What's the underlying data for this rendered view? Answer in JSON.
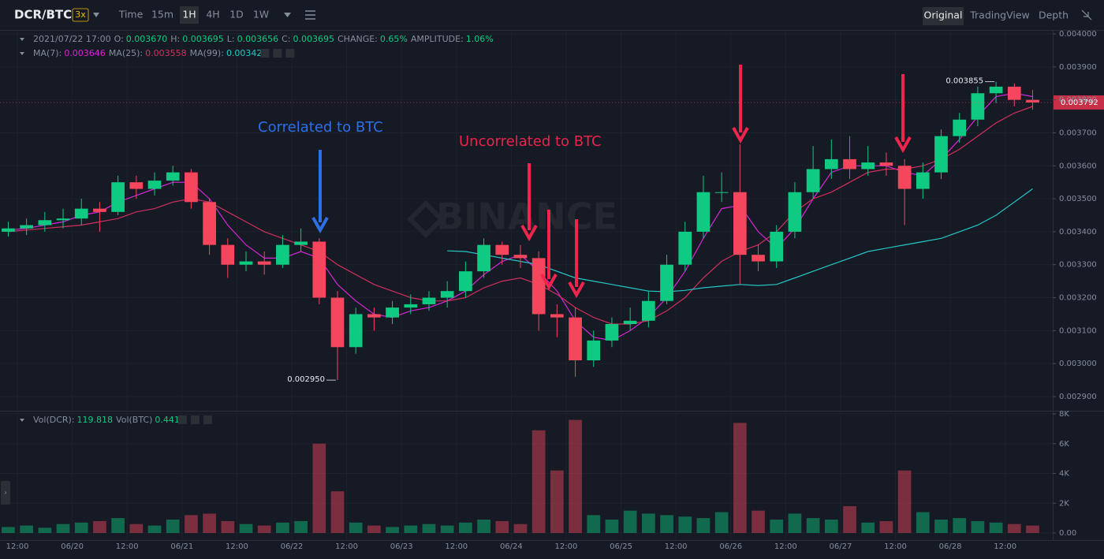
{
  "toolbar": {
    "pair": "DCR/BTC",
    "leverage": "3x",
    "intervals": [
      "Time",
      "15m",
      "1H",
      "4H",
      "1D",
      "1W"
    ],
    "views": [
      "Original",
      "TradingView",
      "Depth"
    ]
  },
  "info": {
    "datetime": "2021/07/22 17:00",
    "items": [
      {
        "label": "O:",
        "value": "0.003670"
      },
      {
        "label": "H:",
        "value": "0.003695"
      },
      {
        "label": "L:",
        "value": "0.003656"
      },
      {
        "label": "C:",
        "value": "0.003695"
      },
      {
        "label": "CHANGE:",
        "value": "0.65%"
      },
      {
        "label": "AMPLITUDE:",
        "value": "1.06%"
      }
    ]
  },
  "ma_legend": [
    {
      "label": "MA(7):",
      "value": "0.003646"
    },
    {
      "label": "MA(25):",
      "value": "0.003558"
    },
    {
      "label": "MA(99):",
      "value": "0.003423"
    }
  ],
  "vol_legend": [
    {
      "label": "Vol(DCR):",
      "value": "119.818"
    },
    {
      "label": "Vol(BTC)",
      "value": "0.441"
    }
  ],
  "watermark": "BINANCE",
  "chart_data": {
    "type": "candlestick",
    "annotations": [
      {
        "text": "Correlated to BTC",
        "color": "#2f6fe6"
      },
      {
        "text": "Uncorrelated to BTC",
        "color": "#e8244b"
      }
    ],
    "up_color": "#0ecb81",
    "down_color": "#f6465d",
    "x": [
      -2,
      2,
      6,
      10,
      14,
      18,
      22,
      26,
      30,
      34,
      38,
      42,
      46,
      50,
      54,
      58,
      62,
      66,
      70,
      74,
      78,
      82,
      86,
      90,
      94,
      98,
      102,
      106,
      110,
      114,
      118,
      122,
      126,
      130,
      134,
      138,
      142,
      146,
      150,
      154,
      158,
      162,
      166,
      170,
      174,
      178,
      182,
      186,
      190,
      194,
      198,
      202,
      206,
      210,
      214,
      218,
      222
    ],
    "open": [
      0.0034,
      0.00341,
      0.00342,
      0.003435,
      0.00344,
      0.00347,
      0.00346,
      0.00355,
      0.00353,
      0.003555,
      0.00358,
      0.00349,
      0.00336,
      0.0033,
      0.00331,
      0.0033,
      0.00336,
      0.00337,
      0.0032,
      0.00305,
      0.00315,
      0.00314,
      0.00317,
      0.00318,
      0.0032,
      0.00322,
      0.00328,
      0.00336,
      0.00333,
      0.00332,
      0.00315,
      0.00314,
      0.00301,
      0.00307,
      0.00312,
      0.00313,
      0.00319,
      0.0033,
      0.0034,
      0.00352,
      0.00352,
      0.00333,
      0.00331,
      0.0034,
      0.00352,
      0.00359,
      0.00362,
      0.00359,
      0.00361,
      0.0036,
      0.00353,
      0.00358,
      0.00369,
      0.00374,
      0.00382,
      0.00384,
      0.0038
    ],
    "high": [
      0.00343,
      0.00344,
      0.00346,
      0.00347,
      0.0035,
      0.00349,
      0.00357,
      0.00357,
      0.00358,
      0.0036,
      0.00359,
      0.0035,
      0.00338,
      0.00334,
      0.00334,
      0.00339,
      0.00341,
      0.00338,
      0.00322,
      0.00317,
      0.00317,
      0.00319,
      0.00321,
      0.00322,
      0.00325,
      0.00331,
      0.00338,
      0.00337,
      0.00336,
      0.00334,
      0.00318,
      0.00317,
      0.0031,
      0.00314,
      0.00317,
      0.00322,
      0.00333,
      0.00343,
      0.00357,
      0.00358,
      0.003665,
      0.00336,
      0.00342,
      0.00355,
      0.00366,
      0.00368,
      0.00369,
      0.00366,
      0.00364,
      0.00362,
      0.00361,
      0.00371,
      0.00376,
      0.00384,
      0.003855,
      0.00385,
      0.00383
    ],
    "low": [
      0.003385,
      0.00339,
      0.0034,
      0.00341,
      0.00342,
      0.0034,
      0.00345,
      0.0035,
      0.00351,
      0.00354,
      0.00347,
      0.00333,
      0.00326,
      0.00328,
      0.00327,
      0.00329,
      0.00334,
      0.00318,
      0.00295,
      0.00303,
      0.0031,
      0.00312,
      0.00315,
      0.00316,
      0.00317,
      0.0032,
      0.00326,
      0.0033,
      0.00329,
      0.0031,
      0.00308,
      0.00296,
      0.00299,
      0.00305,
      0.0031,
      0.00311,
      0.00318,
      0.00328,
      0.00338,
      0.00349,
      0.00324,
      0.00328,
      0.00329,
      0.00338,
      0.0035,
      0.00356,
      0.00356,
      0.00357,
      0.00357,
      0.00342,
      0.0035,
      0.00356,
      0.00367,
      0.00372,
      0.00379,
      0.00378,
      0.00377
    ],
    "close": [
      0.00341,
      0.00342,
      0.003435,
      0.00344,
      0.00347,
      0.00346,
      0.00355,
      0.00353,
      0.003555,
      0.00358,
      0.00349,
      0.00336,
      0.0033,
      0.00331,
      0.0033,
      0.00336,
      0.00337,
      0.0032,
      0.00305,
      0.00315,
      0.00314,
      0.00317,
      0.00318,
      0.0032,
      0.00322,
      0.00328,
      0.00336,
      0.00333,
      0.00332,
      0.00315,
      0.00314,
      0.00301,
      0.00307,
      0.00312,
      0.00313,
      0.00319,
      0.0033,
      0.0034,
      0.00352,
      0.00352,
      0.00333,
      0.00331,
      0.0034,
      0.00352,
      0.00359,
      0.00362,
      0.00359,
      0.00361,
      0.0036,
      0.00353,
      0.00358,
      0.00369,
      0.00374,
      0.00382,
      0.00384,
      0.0038,
      0.003792
    ],
    "volume": [
      400,
      500,
      350,
      600,
      700,
      800,
      1000,
      600,
      500,
      900,
      1200,
      1300,
      800,
      600,
      500,
      700,
      800,
      6000,
      2800,
      700,
      500,
      400,
      500,
      600,
      500,
      700,
      900,
      800,
      600,
      6900,
      4200,
      7600,
      1200,
      900,
      1500,
      1300,
      1200,
      1100,
      1000,
      1400,
      7400,
      1500,
      900,
      1300,
      1000,
      900,
      1800,
      700,
      800,
      4200,
      1400,
      900,
      1000,
      800,
      700,
      600,
      500
    ],
    "series": [
      {
        "color": "#d626d6",
        "values": [
          0.003405,
          0.00341,
          0.00342,
          0.00343,
          0.00345,
          0.00346,
          0.00349,
          0.00351,
          0.00353,
          0.00355,
          0.00355,
          0.0035,
          0.00342,
          0.00336,
          0.00332,
          0.00332,
          0.00334,
          0.00332,
          0.00324,
          0.00319,
          0.00315,
          0.00314,
          0.00316,
          0.00317,
          0.00319,
          0.00322,
          0.00327,
          0.00331,
          0.00333,
          0.00328,
          0.00322,
          0.00313,
          0.00308,
          0.00307,
          0.0031,
          0.00314,
          0.0032,
          0.00328,
          0.00338,
          0.00347,
          0.00348,
          0.0034,
          0.00335,
          0.00341,
          0.0035,
          0.00358,
          0.0036,
          0.0036,
          0.0036,
          0.00358,
          0.00357,
          0.00362,
          0.00368,
          0.00375,
          0.00381,
          0.00382,
          0.00381
        ]
      },
      {
        "color": "#d0305e",
        "values": [
          0.0034,
          0.003405,
          0.00341,
          0.003415,
          0.00342,
          0.00343,
          0.00344,
          0.00346,
          0.00347,
          0.00349,
          0.0035,
          0.00349,
          0.00346,
          0.00343,
          0.0034,
          0.00338,
          0.00336,
          0.00334,
          0.0033,
          0.00327,
          0.00324,
          0.00322,
          0.0032,
          0.00319,
          0.00319,
          0.0032,
          0.00323,
          0.00325,
          0.00326,
          0.00324,
          0.00321,
          0.00317,
          0.00314,
          0.00312,
          0.00312,
          0.00313,
          0.00316,
          0.0032,
          0.00326,
          0.00331,
          0.00334,
          0.00336,
          0.0034,
          0.00346,
          0.0035,
          0.00352,
          0.00355,
          0.00358,
          0.00359,
          0.00359,
          0.0036,
          0.00362,
          0.00365,
          0.00369,
          0.00373,
          0.00376,
          0.00378
        ]
      },
      {
        "color": "#26c6c6",
        "values": [
          null,
          null,
          null,
          null,
          null,
          null,
          null,
          null,
          null,
          null,
          null,
          null,
          null,
          null,
          null,
          null,
          null,
          null,
          null,
          null,
          null,
          null,
          null,
          null,
          0.003342,
          0.00334,
          0.00333,
          0.00332,
          0.00331,
          0.0033,
          0.00328,
          0.00326,
          0.00325,
          0.00324,
          0.00323,
          0.00322,
          0.003218,
          0.003222,
          0.00323,
          0.003235,
          0.00324,
          0.003237,
          0.00324,
          0.00326,
          0.00328,
          0.0033,
          0.00332,
          0.00334,
          0.00335,
          0.00336,
          0.00337,
          0.00338,
          0.0034,
          0.00342,
          0.00345,
          0.00349,
          0.00353
        ]
      }
    ],
    "price_markers": [
      {
        "value": 0.00295,
        "label": "0.002950"
      },
      {
        "value": 0.003855,
        "label": "0.003855"
      }
    ],
    "last_price": 0.003792,
    "xlim": [
      -3.8,
      226.4
    ],
    "xticks": [
      {
        "value": 0,
        "label": "12:00"
      },
      {
        "value": 12,
        "label": "06/20"
      },
      {
        "value": 24,
        "label": "12:00"
      },
      {
        "value": 36,
        "label": "06/21"
      },
      {
        "value": 48,
        "label": "12:00"
      },
      {
        "value": 60,
        "label": "06/22"
      },
      {
        "value": 72,
        "label": "12:00"
      },
      {
        "value": 84,
        "label": "06/23"
      },
      {
        "value": 96,
        "label": "12:00"
      },
      {
        "value": 108,
        "label": "06/24"
      },
      {
        "value": 120,
        "label": "12:00"
      },
      {
        "value": 132,
        "label": "06/25"
      },
      {
        "value": 144,
        "label": "12:00"
      },
      {
        "value": 156,
        "label": "06/26"
      },
      {
        "value": 168,
        "label": "12:00"
      },
      {
        "value": 180,
        "label": "06/27"
      },
      {
        "value": 192,
        "label": "12:00"
      },
      {
        "value": 204,
        "label": "06/28"
      },
      {
        "value": 216,
        "label": "12:00"
      }
    ],
    "ylim": [
      0.0029,
      0.004
    ],
    "yticks": [
      {
        "value": 0.004,
        "label": "0.004000"
      },
      {
        "value": 0.0039,
        "label": "0.003900"
      },
      {
        "value": 0.0038,
        "label": "0.003800"
      },
      {
        "value": 0.0037,
        "label": "0.003700"
      },
      {
        "value": 0.0036,
        "label": "0.003600"
      },
      {
        "value": 0.0035,
        "label": "0.003500"
      },
      {
        "value": 0.0034,
        "label": "0.003400"
      },
      {
        "value": 0.0033,
        "label": "0.003300"
      },
      {
        "value": 0.0032,
        "label": "0.003200"
      },
      {
        "value": 0.0031,
        "label": "0.003100"
      },
      {
        "value": 0.003,
        "label": "0.003000"
      },
      {
        "value": 0.0029,
        "label": "0.002900"
      }
    ],
    "y2lim": [
      0,
      8000
    ],
    "y2ticks": [
      {
        "value": 8000,
        "label": "8K"
      },
      {
        "value": 6000,
        "label": "6K"
      },
      {
        "value": 4000,
        "label": "4K"
      },
      {
        "value": 2000,
        "label": "2K"
      },
      {
        "value": 0,
        "label": "0.00"
      }
    ],
    "grid": true
  }
}
